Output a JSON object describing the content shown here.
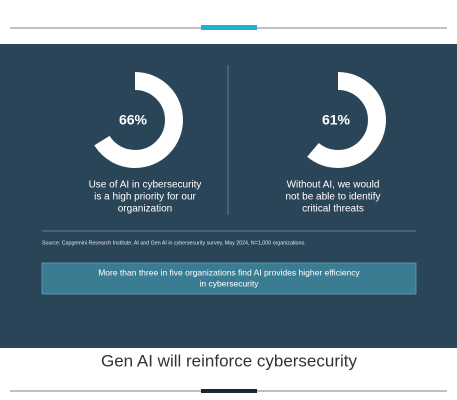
{
  "chart_data": [
    {
      "type": "donut",
      "values": [
        66
      ],
      "value_labels": [
        "66%"
      ],
      "color": "#ffffff",
      "caption": [
        "Use of AI in cybersecurity",
        "is a high priority for our",
        "organization"
      ]
    },
    {
      "type": "donut",
      "values": [
        61
      ],
      "value_labels": [
        "61%"
      ],
      "color": "#ffffff",
      "caption": [
        "Without AI, we would",
        "not be able to identify",
        "critical threats"
      ]
    }
  ],
  "source": "Source: Capgemini Research Institute, AI and Gen AI in cybersecurity survey, May 2024, N=1,000 organizations.",
  "callout": [
    "More than three in five organizations find AI provides higher efficiency",
    "in cybersecurity"
  ],
  "heading": "Gen AI will reinforce cybersecurity"
}
